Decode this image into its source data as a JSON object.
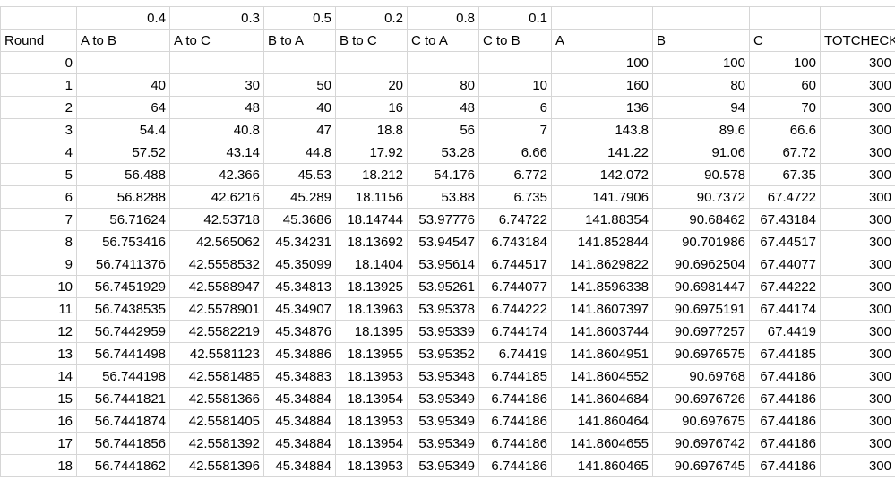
{
  "rates_row": [
    "",
    "0.4",
    "0.3",
    "0.5",
    "0.2",
    "0.8",
    "0.1",
    "",
    "",
    "",
    ""
  ],
  "header_row": [
    "Round",
    "A to B",
    "A to C",
    "B to A",
    "B to C",
    "C to A",
    "C to B",
    "A",
    "B",
    "C",
    "TOTCHECK"
  ],
  "rows": [
    [
      "0",
      "",
      "",
      "",
      "",
      "",
      "",
      "100",
      "100",
      "100",
      "300"
    ],
    [
      "1",
      "40",
      "30",
      "50",
      "20",
      "80",
      "10",
      "160",
      "80",
      "60",
      "300"
    ],
    [
      "2",
      "64",
      "48",
      "40",
      "16",
      "48",
      "6",
      "136",
      "94",
      "70",
      "300"
    ],
    [
      "3",
      "54.4",
      "40.8",
      "47",
      "18.8",
      "56",
      "7",
      "143.8",
      "89.6",
      "66.6",
      "300"
    ],
    [
      "4",
      "57.52",
      "43.14",
      "44.8",
      "17.92",
      "53.28",
      "6.66",
      "141.22",
      "91.06",
      "67.72",
      "300"
    ],
    [
      "5",
      "56.488",
      "42.366",
      "45.53",
      "18.212",
      "54.176",
      "6.772",
      "142.072",
      "90.578",
      "67.35",
      "300"
    ],
    [
      "6",
      "56.8288",
      "42.6216",
      "45.289",
      "18.1156",
      "53.88",
      "6.735",
      "141.7906",
      "90.7372",
      "67.4722",
      "300"
    ],
    [
      "7",
      "56.71624",
      "42.53718",
      "45.3686",
      "18.14744",
      "53.97776",
      "6.74722",
      "141.88354",
      "90.68462",
      "67.43184",
      "300"
    ],
    [
      "8",
      "56.753416",
      "42.565062",
      "45.34231",
      "18.13692",
      "53.94547",
      "6.743184",
      "141.852844",
      "90.701986",
      "67.44517",
      "300"
    ],
    [
      "9",
      "56.7411376",
      "42.5558532",
      "45.35099",
      "18.1404",
      "53.95614",
      "6.744517",
      "141.8629822",
      "90.6962504",
      "67.44077",
      "300"
    ],
    [
      "10",
      "56.7451929",
      "42.5588947",
      "45.34813",
      "18.13925",
      "53.95261",
      "6.744077",
      "141.8596338",
      "90.6981447",
      "67.44222",
      "300"
    ],
    [
      "11",
      "56.7438535",
      "42.5578901",
      "45.34907",
      "18.13963",
      "53.95378",
      "6.744222",
      "141.8607397",
      "90.6975191",
      "67.44174",
      "300"
    ],
    [
      "12",
      "56.7442959",
      "42.5582219",
      "45.34876",
      "18.1395",
      "53.95339",
      "6.744174",
      "141.8603744",
      "90.6977257",
      "67.4419",
      "300"
    ],
    [
      "13",
      "56.7441498",
      "42.5581123",
      "45.34886",
      "18.13955",
      "53.95352",
      "6.74419",
      "141.8604951",
      "90.6976575",
      "67.44185",
      "300"
    ],
    [
      "14",
      "56.744198",
      "42.5581485",
      "45.34883",
      "18.13953",
      "53.95348",
      "6.744185",
      "141.8604552",
      "90.69768",
      "67.44186",
      "300"
    ],
    [
      "15",
      "56.7441821",
      "42.5581366",
      "45.34884",
      "18.13954",
      "53.95349",
      "6.744186",
      "141.8604684",
      "90.6976726",
      "67.44186",
      "300"
    ],
    [
      "16",
      "56.7441874",
      "42.5581405",
      "45.34884",
      "18.13953",
      "53.95349",
      "6.744186",
      "141.860464",
      "90.697675",
      "67.44186",
      "300"
    ],
    [
      "17",
      "56.7441856",
      "42.5581392",
      "45.34884",
      "18.13954",
      "53.95349",
      "6.744186",
      "141.8604655",
      "90.6976742",
      "67.44186",
      "300"
    ],
    [
      "18",
      "56.7441862",
      "42.5581396",
      "45.34884",
      "18.13953",
      "53.95349",
      "6.744186",
      "141.860465",
      "90.6976745",
      "67.44186",
      "300"
    ]
  ]
}
